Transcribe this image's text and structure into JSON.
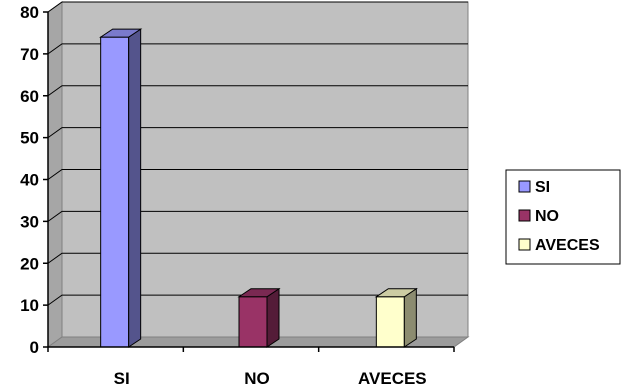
{
  "chart_data": {
    "type": "bar",
    "style": "3d",
    "categories": [
      "SI",
      "NO",
      "AVECES"
    ],
    "series": [
      {
        "name": "SI",
        "values": [
          74,
          null,
          null
        ],
        "color": "#9999ff"
      },
      {
        "name": "NO",
        "values": [
          null,
          12,
          null
        ],
        "color": "#993366"
      },
      {
        "name": "AVECES",
        "values": [
          null,
          null,
          12
        ],
        "color": "#ffffcc"
      }
    ],
    "ylim": [
      0,
      80
    ],
    "yticks": [
      0,
      10,
      20,
      30,
      40,
      50,
      60,
      70,
      80
    ],
    "grid": true,
    "plot_background": "#c0c0c0",
    "legend_position": "right",
    "legend": [
      "SI",
      "NO",
      "AVECES"
    ]
  }
}
